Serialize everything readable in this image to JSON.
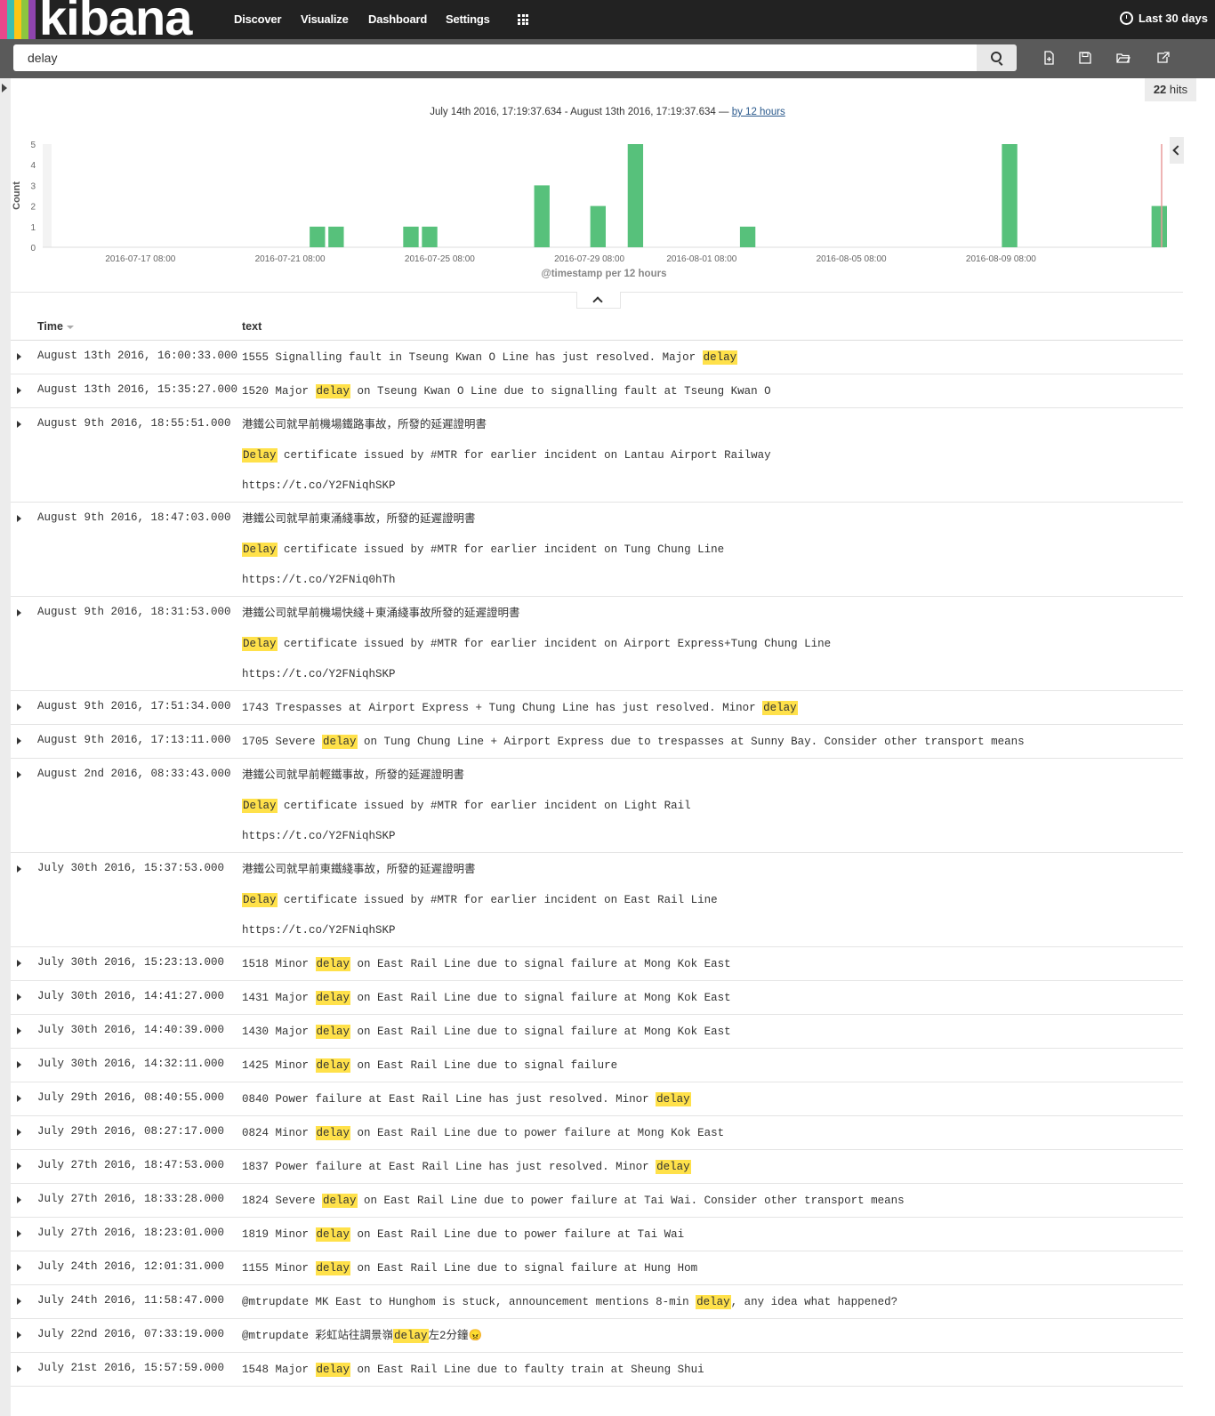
{
  "brand": {
    "logo_text": "kibana",
    "stripe_colors": [
      "#e8488b",
      "#3ebeb0",
      "#fec514",
      "#8cc63f",
      "#8e44ad"
    ]
  },
  "nav": {
    "items": [
      "Discover",
      "Visualize",
      "Dashboard",
      "Settings"
    ],
    "time_range_label": "Last 30 days"
  },
  "search": {
    "query": "delay"
  },
  "hits": {
    "count": "22",
    "label": "hits"
  },
  "chart_header": {
    "range_text": "July 14th 2016, 17:19:37.634 - August 13th 2016, 17:19:37.634 — ",
    "interval_link": "by 12 hours"
  },
  "chart_data": {
    "type": "bar",
    "ylabel": "Count",
    "xlabel": "@timestamp per 12 hours",
    "ylim": [
      0,
      5
    ],
    "yticks": [
      0,
      1,
      2,
      3,
      4,
      5
    ],
    "xticks": [
      "2016-07-17 08:00",
      "2016-07-21 08:00",
      "2016-07-25 08:00",
      "2016-07-29 08:00",
      "2016-08-01 08:00",
      "2016-08-05 08:00",
      "2016-08-09 08:00"
    ],
    "bar_color": "#57c17b",
    "bars": [
      {
        "bucket_start": "2016-07-21 20:00",
        "count": 1
      },
      {
        "bucket_start": "2016-07-22 08:00",
        "count": 1
      },
      {
        "bucket_start": "2016-07-24 08:00",
        "count": 1
      },
      {
        "bucket_start": "2016-07-24 20:00",
        "count": 1
      },
      {
        "bucket_start": "2016-07-27 20:00",
        "count": 3
      },
      {
        "bucket_start": "2016-07-29 08:00",
        "count": 2
      },
      {
        "bucket_start": "2016-07-30 08:00",
        "count": 5
      },
      {
        "bucket_start": "2016-08-02 08:00",
        "count": 1
      },
      {
        "bucket_start": "2016-08-09 08:00",
        "count": 5
      },
      {
        "bucket_start": "2016-08-13 08:00",
        "count": 2
      }
    ]
  },
  "table": {
    "columns": [
      "Time",
      "text"
    ],
    "rows": [
      {
        "time": "August 13th 2016, 16:00:33.000",
        "lines": [
          [
            "1555 Signalling fault in Tseung Kwan O Line has just resolved. Major ",
            "delay",
            ""
          ]
        ]
      },
      {
        "time": "August 13th 2016, 15:35:27.000",
        "lines": [
          [
            "1520 Major ",
            "delay",
            " on Tseung Kwan O Line due to signalling fault at Tseung Kwan O"
          ]
        ]
      },
      {
        "time": "August 9th 2016, 18:55:51.000",
        "lines": [
          [
            "港鐵公司就早前機場鐵路事故，所發的延遲證明書",
            "",
            ""
          ],
          [
            "",
            "Delay",
            " certificate issued by #MTR for earlier incident on Lantau Airport Railway"
          ],
          [
            "https://t.co/Y2FNiqhSKP",
            "",
            ""
          ]
        ]
      },
      {
        "time": "August 9th 2016, 18:47:03.000",
        "lines": [
          [
            "港鐵公司就早前東涌綫事故，所發的延遲證明書",
            "",
            ""
          ],
          [
            "",
            "Delay",
            " certificate issued by #MTR for earlier incident on Tung Chung Line"
          ],
          [
            "https://t.co/Y2FNiq0hTh",
            "",
            ""
          ]
        ]
      },
      {
        "time": "August 9th 2016, 18:31:53.000",
        "lines": [
          [
            "港鐵公司就早前機場快綫＋東涌綫事故所發的延遲證明書",
            "",
            ""
          ],
          [
            "",
            "Delay",
            " certificate issued by #MTR for earlier incident on Airport Express+Tung Chung Line"
          ],
          [
            "https://t.co/Y2FNiqhSKP",
            "",
            ""
          ]
        ]
      },
      {
        "time": "August 9th 2016, 17:51:34.000",
        "lines": [
          [
            "1743 Trespasses at Airport Express + Tung Chung Line has just resolved. Minor ",
            "delay",
            ""
          ]
        ]
      },
      {
        "time": "August 9th 2016, 17:13:11.000",
        "lines": [
          [
            "1705 Severe ",
            "delay",
            " on Tung Chung Line + Airport Express due to trespasses at Sunny Bay. Consider other transport means"
          ]
        ]
      },
      {
        "time": "August 2nd 2016, 08:33:43.000",
        "lines": [
          [
            "港鐵公司就早前輕鐵事故，所發的延遲證明書",
            "",
            ""
          ],
          [
            "",
            "Delay",
            " certificate issued by #MTR for earlier incident on Light Rail"
          ],
          [
            "https://t.co/Y2FNiqhSKP",
            "",
            ""
          ]
        ]
      },
      {
        "time": "July 30th 2016, 15:37:53.000",
        "lines": [
          [
            "港鐵公司就早前東鐵綫事故，所發的延遲證明書",
            "",
            ""
          ],
          [
            "",
            "Delay",
            " certificate issued by #MTR for earlier incident on East Rail Line"
          ],
          [
            "https://t.co/Y2FNiqhSKP",
            "",
            ""
          ]
        ]
      },
      {
        "time": "July 30th 2016, 15:23:13.000",
        "lines": [
          [
            "1518 Minor ",
            "delay",
            " on East Rail Line due to signal failure at Mong Kok East"
          ]
        ]
      },
      {
        "time": "July 30th 2016, 14:41:27.000",
        "lines": [
          [
            "1431 Major ",
            "delay",
            " on East Rail Line due to signal failure at Mong Kok East"
          ]
        ]
      },
      {
        "time": "July 30th 2016, 14:40:39.000",
        "lines": [
          [
            "1430 Major ",
            "delay",
            " on East Rail Line due to signal failure at Mong Kok East"
          ]
        ]
      },
      {
        "time": "July 30th 2016, 14:32:11.000",
        "lines": [
          [
            "1425 Minor ",
            "delay",
            " on East Rail Line due to signal failure"
          ]
        ]
      },
      {
        "time": "July 29th 2016, 08:40:55.000",
        "lines": [
          [
            "0840 Power failure at East Rail Line has just resolved. Minor ",
            "delay",
            ""
          ]
        ]
      },
      {
        "time": "July 29th 2016, 08:27:17.000",
        "lines": [
          [
            "0824 Minor ",
            "delay",
            " on East Rail Line due to power failure at Mong Kok East"
          ]
        ]
      },
      {
        "time": "July 27th 2016, 18:47:53.000",
        "lines": [
          [
            "1837 Power failure at East Rail Line has just resolved. Minor ",
            "delay",
            ""
          ]
        ]
      },
      {
        "time": "July 27th 2016, 18:33:28.000",
        "lines": [
          [
            "1824 Severe ",
            "delay",
            " on East Rail Line due to power failure at Tai Wai. Consider other transport means"
          ]
        ]
      },
      {
        "time": "July 27th 2016, 18:23:01.000",
        "lines": [
          [
            "1819 Minor ",
            "delay",
            " on East Rail Line due to power failure at Tai Wai"
          ]
        ]
      },
      {
        "time": "July 24th 2016, 12:01:31.000",
        "lines": [
          [
            "1155 Minor ",
            "delay",
            " on East Rail Line due to signal failure at Hung Hom"
          ]
        ]
      },
      {
        "time": "July 24th 2016, 11:58:47.000",
        "lines": [
          [
            "@mtrupdate MK East to Hunghom is stuck, announcement mentions 8-min ",
            "delay",
            ", any idea what happened?"
          ]
        ]
      },
      {
        "time": "July 22nd 2016, 07:33:19.000",
        "lines": [
          [
            "@mtrupdate 彩虹站往調景嶺",
            "delay",
            "左2分鐘😠"
          ]
        ]
      },
      {
        "time": "July 21st 2016, 15:57:59.000",
        "lines": [
          [
            "1548 Major ",
            "delay",
            " on East Rail Line due to faulty train at Sheung Shui"
          ]
        ]
      }
    ]
  }
}
